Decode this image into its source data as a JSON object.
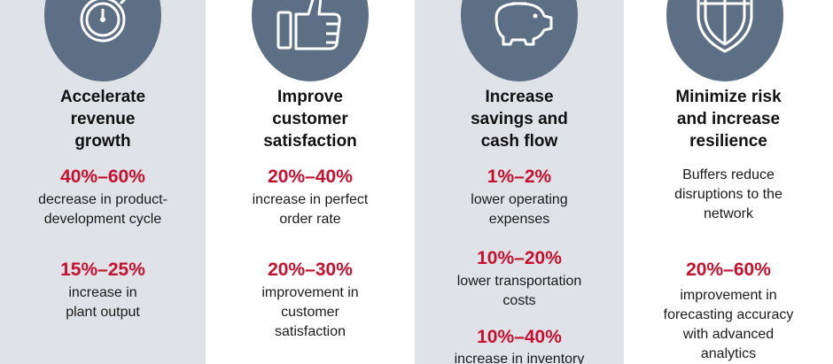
{
  "columns": [
    {
      "icon": "stopwatch-icon",
      "title": [
        "Accelerate",
        "revenue",
        "growth"
      ],
      "items": [
        {
          "value": "40%–60%",
          "text": [
            "decrease in product-",
            "development cycle"
          ]
        },
        {
          "value": "15%–25%",
          "text": [
            "increase in",
            "plant output"
          ]
        }
      ]
    },
    {
      "icon": "thumbs-up-icon",
      "title": [
        "Improve",
        "customer",
        "satisfaction"
      ],
      "items": [
        {
          "value": "20%–40%",
          "text": [
            "increase in perfect",
            "order rate"
          ]
        },
        {
          "value": "20%–30%",
          "text": [
            "improvement in",
            "customer",
            "satisfaction"
          ]
        }
      ]
    },
    {
      "icon": "piggy-bank-icon",
      "title": [
        "Increase",
        "savings and",
        "cash flow"
      ],
      "items": [
        {
          "value": "1%–2%",
          "text": [
            "lower operating",
            "expenses"
          ]
        },
        {
          "value": "10%–20%",
          "text": [
            "lower transportation",
            "costs"
          ]
        },
        {
          "value": "10%–40%",
          "text": [
            "increase in inventory"
          ]
        }
      ]
    },
    {
      "icon": "shield-icon",
      "title": [
        "Minimize risk",
        "and increase",
        "resilience"
      ],
      "items": [
        {
          "value": "",
          "text": [
            "Buffers reduce",
            "disruptions to the",
            "network"
          ]
        },
        {
          "value": "20%–60%",
          "text": [
            "improvement in",
            "forecasting accuracy",
            "with advanced",
            "analytics"
          ]
        }
      ]
    }
  ],
  "colors": {
    "accent_red": "#c8102e",
    "circle": "#5c6f85",
    "panel": "#dfe3e8"
  }
}
